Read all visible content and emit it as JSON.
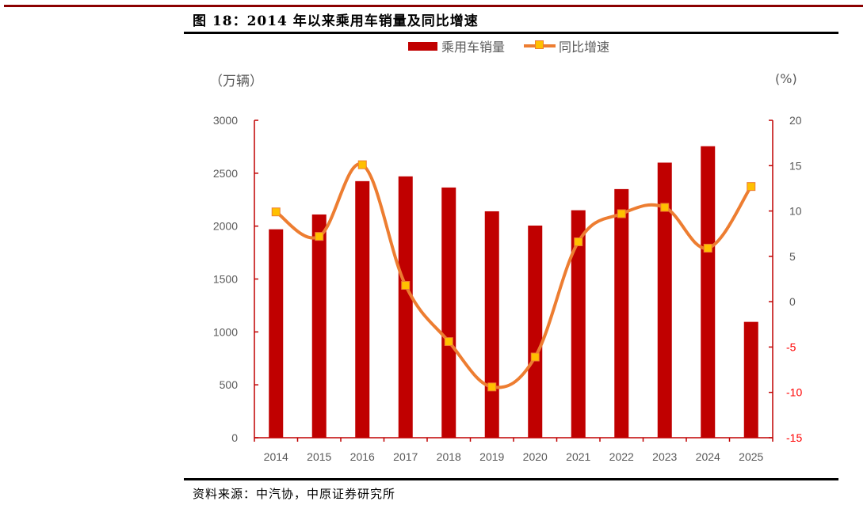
{
  "figure": {
    "title": "图 18：2014 年以来乘用车销量及同比增速",
    "source": "资料来源：中汽协，中原证券研究所"
  },
  "legend": {
    "bar_label": "乘用车销量",
    "line_label": "同比增速"
  },
  "axes": {
    "left_unit": "（万辆）",
    "right_unit": "(%)",
    "left_ticks": [
      "0",
      "500",
      "1000",
      "1500",
      "2000",
      "2500",
      "3000"
    ],
    "right_ticks": [
      "-15",
      "-10",
      "-5",
      "0",
      "5",
      "10",
      "15",
      "20"
    ]
  },
  "colors": {
    "bar": "#c00000",
    "line": "#ed7d31",
    "marker": "#ffc000",
    "axis": "#c00000",
    "tick_text": "#595959",
    "negative_tick_text": "#ff0000"
  },
  "chart_data": {
    "type": "bar",
    "title": "2014 年以来乘用车销量及同比增速",
    "categories": [
      "2014",
      "2015",
      "2016",
      "2017",
      "2018",
      "2019",
      "2020",
      "2021",
      "2022",
      "2023",
      "2024",
      "2025"
    ],
    "series": [
      {
        "name": "乘用车销量",
        "type": "bar",
        "axis": "left",
        "values": [
          1970,
          2110,
          2425,
          2470,
          2365,
          2140,
          2005,
          2150,
          2350,
          2600,
          2755,
          1095
        ]
      },
      {
        "name": "同比增速",
        "type": "line",
        "axis": "right",
        "smooth": true,
        "values": [
          9.9,
          7.2,
          15.1,
          1.8,
          -4.4,
          -9.4,
          -6.1,
          6.6,
          9.7,
          10.4,
          5.9,
          12.7
        ]
      }
    ],
    "xlabel": "",
    "ylabel": "万辆",
    "y2label": "%",
    "ylim": [
      0,
      3000
    ],
    "y2lim": [
      -15,
      20
    ],
    "grid": false,
    "legend_position": "top"
  }
}
